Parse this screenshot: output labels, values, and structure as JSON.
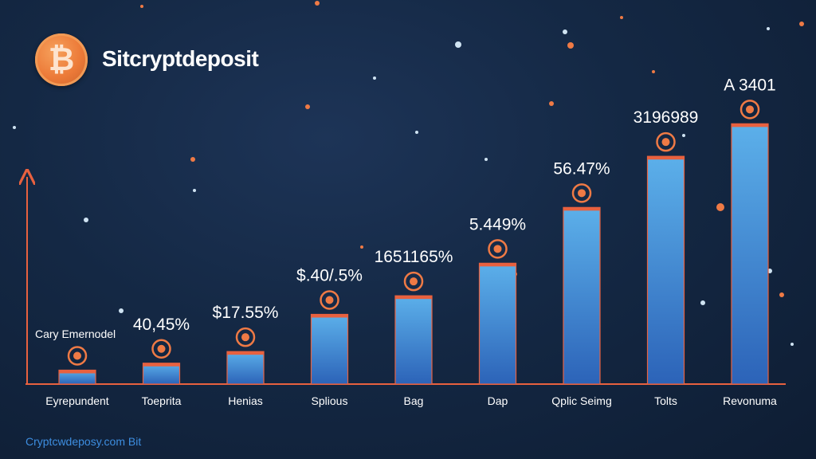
{
  "header": {
    "logo_glyph": "₿",
    "brand": "Sitcryptdeposit"
  },
  "footer": {
    "link": "Cryptcwdeposy.com Bit"
  },
  "annotation": {
    "axis_note": "Cary Emernodel"
  },
  "colors": {
    "bar_top": "#5cb0ea",
    "bar_bottom": "#2c63b8",
    "bar_edge": "#e8613f",
    "accent": "#ef7a45",
    "axis": "#e8613f"
  },
  "chart_data": {
    "type": "bar",
    "categories": [
      "Eyrepundent",
      "Toeprita",
      "Henias",
      "Splious",
      "Bag",
      "Dap",
      "Qplic Seimg",
      "Tolts",
      "Revonuma"
    ],
    "values": [
      6,
      9,
      14,
      30,
      38,
      52,
      76,
      98,
      112
    ],
    "data_labels": [
      "",
      "40,45%",
      "$17.55%",
      "$.40/.5%",
      "1651165%",
      "5.449%",
      "56.47%",
      "3196989",
      "A 3401"
    ],
    "icons": [
      "shield-icon",
      "bull-icon",
      "fist-icon",
      "dollar-coin-icon",
      "map-pin-icon",
      "chart-horse-icon",
      "no-dollar-icon",
      "pie-icon",
      "bar-chart-icon"
    ],
    "ylim": [
      0,
      120
    ],
    "grid": false,
    "legend": "none"
  }
}
